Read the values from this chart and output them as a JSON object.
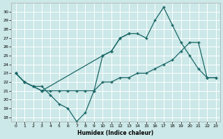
{
  "xlabel": "Humidex (Indice chaleur)",
  "background_color": "#cce8e8",
  "grid_color": "#ffffff",
  "line_color": "#1a6666",
  "xlim": [
    -0.5,
    23.5
  ],
  "ylim": [
    17.5,
    31.0
  ],
  "yticks": [
    18,
    19,
    20,
    21,
    22,
    23,
    24,
    25,
    26,
    27,
    28,
    29,
    30
  ],
  "xticks": [
    0,
    1,
    2,
    3,
    4,
    5,
    6,
    7,
    8,
    9,
    10,
    11,
    12,
    13,
    14,
    15,
    16,
    17,
    18,
    19,
    20,
    21,
    22,
    23
  ],
  "series": [
    {
      "x": [
        0,
        1,
        2,
        3,
        4,
        5,
        6,
        7,
        8,
        9,
        10,
        11,
        12,
        13
      ],
      "y": [
        23,
        22,
        21.5,
        21.5,
        20.5,
        19.5,
        19.0,
        17.5,
        18.5,
        21.0,
        25.0,
        25.5,
        27.0,
        27.5
      ]
    },
    {
      "x": [
        0,
        1,
        2,
        3,
        10,
        11,
        12,
        13,
        14,
        15,
        16,
        17,
        18,
        19,
        20,
        21,
        22,
        23
      ],
      "y": [
        23,
        22,
        21.5,
        21.0,
        25.0,
        25.5,
        27.0,
        27.5,
        27.5,
        27.0,
        29.0,
        30.5,
        28.5,
        26.5,
        25.0,
        23.5,
        22.5,
        22.5
      ]
    },
    {
      "x": [
        0,
        1,
        2,
        3,
        4,
        5,
        6,
        7,
        8,
        9,
        10,
        11,
        12,
        13,
        14,
        15,
        16,
        17,
        18,
        19,
        20,
        21,
        22,
        23
      ],
      "y": [
        23,
        22,
        21.5,
        21.0,
        21.0,
        21.0,
        21.0,
        21.0,
        21.0,
        21.0,
        22.0,
        22.0,
        22.5,
        22.5,
        23.0,
        23.0,
        23.5,
        24.0,
        24.5,
        25.5,
        26.5,
        26.5,
        22.5,
        22.5
      ]
    }
  ]
}
